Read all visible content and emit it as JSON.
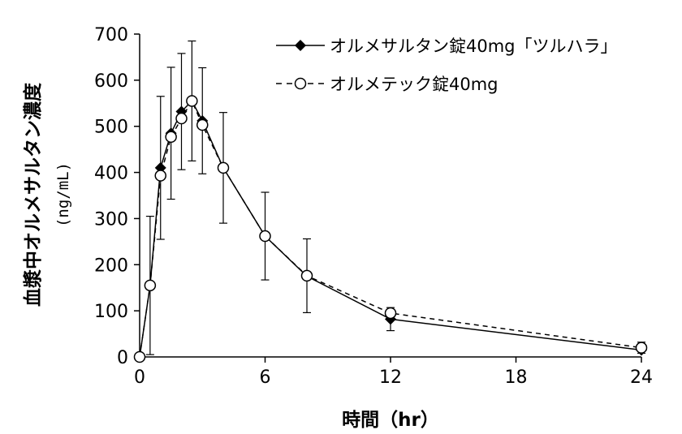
{
  "chart_data": {
    "type": "line",
    "xlabel": "時間（hr）",
    "ylabel": "血漿中オルメサルタン濃度",
    "yunit": "(ng/mL)",
    "xlim": [
      0,
      24
    ],
    "ylim": [
      0,
      700
    ],
    "xticks": [
      0,
      6,
      12,
      18,
      24
    ],
    "yticks": [
      0,
      100,
      200,
      300,
      400,
      500,
      600,
      700
    ],
    "grid": false,
    "legend": "top-right",
    "x": [
      0,
      0.5,
      1,
      1.5,
      2,
      2.5,
      3,
      4,
      6,
      8,
      12,
      24
    ],
    "series": [
      {
        "name": "オルメサルタン錠40mg「ツルハラ」",
        "marker": "diamond",
        "line": "solid",
        "values": [
          0,
          155,
          410,
          485,
          532,
          555,
          512,
          410,
          262,
          175,
          82,
          15
        ],
        "error": [
          0,
          0,
          155,
          143,
          126,
          0,
          115,
          120,
          95,
          0,
          25,
          0
        ]
      },
      {
        "name": "オルメテック錠40mg",
        "marker": "circle",
        "line": "dashed",
        "values": [
          0,
          155,
          393,
          477,
          517,
          555,
          503,
          410,
          262,
          176,
          95,
          20
        ],
        "error": [
          0,
          150,
          0,
          0,
          0,
          130,
          0,
          0,
          0,
          80,
          0,
          12
        ]
      }
    ]
  }
}
